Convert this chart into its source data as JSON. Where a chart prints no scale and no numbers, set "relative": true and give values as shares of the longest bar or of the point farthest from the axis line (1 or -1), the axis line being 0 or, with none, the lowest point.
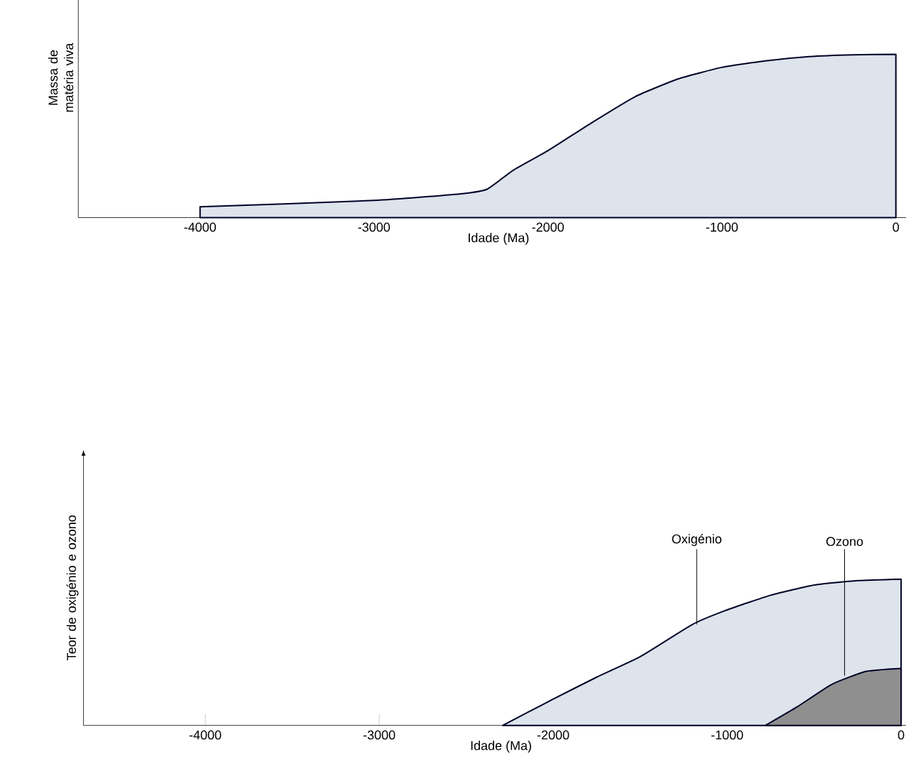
{
  "chart_data": [
    {
      "type": "area",
      "relative": true,
      "xlabel": "Idade (Ma)",
      "ylabel": "Massa de matéria viva",
      "xlim": [
        -4700,
        130
      ],
      "xticks": [
        -4000,
        -3000,
        -2000,
        -1000,
        0
      ],
      "grid": false,
      "series": [
        {
          "color": "#dde4ec",
          "x": [
            -4000,
            -3000,
            -2500,
            -2350,
            -2200,
            -2000,
            -1750,
            -1500,
            -1250,
            -1000,
            -750,
            -500,
            -250,
            0
          ],
          "values": [
            0.066,
            0.105,
            0.146,
            0.174,
            0.29,
            0.41,
            0.58,
            0.74,
            0.85,
            0.92,
            0.96,
            0.986,
            0.997,
            1
          ]
        }
      ]
    },
    {
      "type": "area",
      "relative": true,
      "xlabel": "Idade (Ma)",
      "ylabel": "Teor de oxigénio e ozono",
      "xlim": [
        -4700,
        100
      ],
      "xticks": [
        -4000,
        -3000,
        -2000,
        -1000,
        0
      ],
      "grid": false,
      "series": [
        {
          "color": "#dde4ec",
          "x": [
            -2290,
            -2000,
            -1750,
            -1500,
            -1200,
            -1000,
            -750,
            -500,
            -250,
            0
          ],
          "values": [
            0,
            0.18,
            0.33,
            0.47,
            0.69,
            0.79,
            0.89,
            0.96,
            0.99,
            1
          ]
        },
        {
          "color": "#8f8f8f",
          "x": [
            -780,
            -600,
            -400,
            -200,
            0
          ],
          "values": [
            0,
            0.125,
            0.28,
            0.37,
            0.39
          ]
        }
      ],
      "annotations": [
        {
          "text": "Oxigénio",
          "x": -1175,
          "y": 0.69
        },
        {
          "text": "Ozono",
          "x": -325,
          "y": 0.34
        }
      ]
    }
  ]
}
